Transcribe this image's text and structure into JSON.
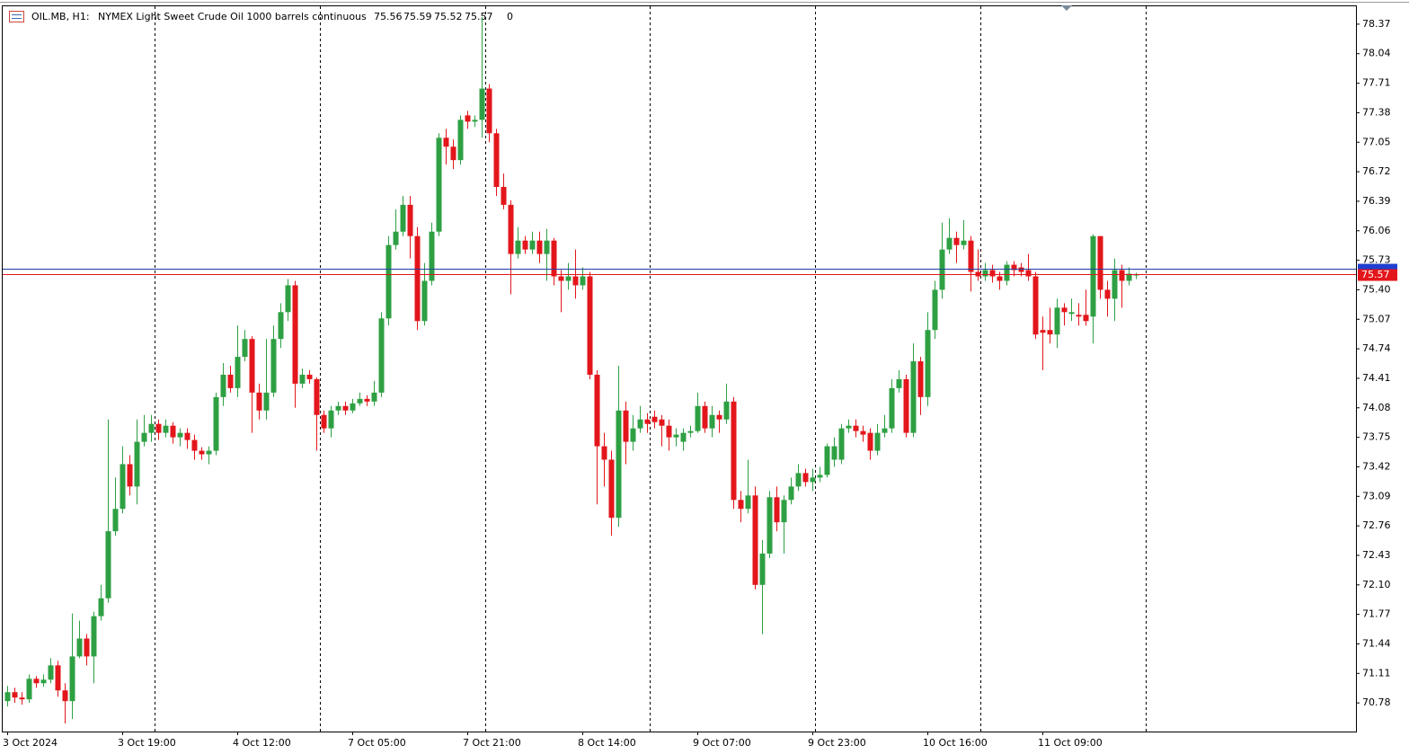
{
  "chart_data": {
    "type": "candlestick",
    "symbol": "OIL.MB, H1:",
    "title": "NYMEX Light Sweet Crude Oil 1000 barrels continuous",
    "volume": 0,
    "bid": 75.57,
    "ask": 75.63,
    "up_color": "#2ea043",
    "down_color": "#e3161b",
    "ylim": [
      70.46,
      78.57
    ],
    "yticks": [
      78.37,
      78.04,
      77.71,
      77.38,
      77.05,
      76.72,
      76.39,
      76.06,
      75.73,
      {
        "value": 75.4,
        "label": "75.40"
      },
      75.07,
      74.74,
      74.41,
      74.08,
      73.75,
      73.42,
      73.09,
      72.76,
      72.43,
      {
        "value": 72.1,
        "label": "72.10"
      },
      71.77,
      71.44,
      71.11,
      70.78
    ],
    "categories": [
      "3 Oct 2024",
      null,
      null,
      null,
      null,
      null,
      null,
      null,
      null,
      null,
      null,
      null,
      null,
      null,
      null,
      null,
      "3 Oct 19:00",
      null,
      null,
      null,
      null,
      null,
      null,
      null,
      null,
      null,
      null,
      null,
      null,
      null,
      null,
      null,
      "4 Oct 12:00",
      null,
      null,
      null,
      null,
      null,
      null,
      null,
      null,
      null,
      null,
      null,
      null,
      null,
      null,
      null,
      "7 Oct 05:00",
      null,
      null,
      null,
      null,
      null,
      null,
      null,
      null,
      null,
      null,
      null,
      null,
      null,
      null,
      null,
      "7 Oct 21:00",
      null,
      null,
      null,
      null,
      null,
      null,
      null,
      null,
      null,
      null,
      null,
      null,
      null,
      null,
      null,
      "8 Oct 14:00",
      null,
      null,
      null,
      null,
      null,
      null,
      null,
      null,
      null,
      null,
      null,
      null,
      null,
      null,
      null,
      "9 Oct 07:00",
      null,
      null,
      null,
      null,
      null,
      null,
      null,
      null,
      null,
      null,
      null,
      null,
      null,
      null,
      null,
      "9 Oct 23:00",
      null,
      null,
      null,
      null,
      null,
      null,
      null,
      null,
      null,
      null,
      null,
      null,
      null,
      null,
      null,
      "10 Oct 16:00",
      null,
      null,
      null,
      null,
      null,
      null,
      null,
      null,
      null,
      null,
      null,
      null,
      null,
      null,
      null,
      "11 Oct 09:00",
      null,
      null,
      null,
      null,
      null,
      null,
      null,
      null,
      null,
      null,
      null,
      null,
      null
    ],
    "open": [
      70.8,
      70.9,
      70.84,
      70.82,
      71.05,
      71.0,
      71.04,
      71.2,
      70.92,
      70.8,
      71.3,
      71.5,
      71.3,
      71.75,
      71.95,
      72.7,
      72.95,
      73.45,
      73.2,
      73.7,
      73.8,
      73.9,
      73.8,
      73.88,
      73.75,
      73.8,
      73.72,
      73.6,
      73.56,
      73.6,
      74.2,
      74.45,
      74.3,
      74.65,
      74.85,
      74.25,
      74.05,
      74.25,
      74.85,
      75.15,
      75.45,
      74.35,
      74.45,
      74.4,
      74.0,
      73.85,
      74.05,
      74.1,
      74.05,
      74.13,
      74.18,
      74.15,
      74.25,
      75.08,
      75.9,
      76.05,
      76.35,
      76.0,
      75.05,
      75.5,
      76.05,
      77.1,
      77.0,
      76.85,
      77.35,
      77.28,
      77.3,
      77.65,
      77.15,
      76.55,
      76.35,
      75.8,
      75.95,
      75.85,
      75.95,
      75.8,
      75.95,
      75.55,
      75.5,
      75.55,
      75.45,
      75.55,
      74.45,
      73.65,
      73.5,
      72.85,
      74.05,
      73.7,
      73.85,
      73.95,
      73.98,
      73.95,
      73.88,
      73.75,
      73.7,
      73.8,
      73.82,
      74.1,
      73.85,
      74.0,
      73.95,
      74.15,
      73.05,
      72.95,
      73.1,
      72.1,
      72.45,
      73.08,
      72.8,
      73.05,
      73.2,
      73.35,
      73.25,
      73.3,
      73.33,
      73.5,
      73.5,
      73.85,
      73.88,
      73.82,
      73.8,
      73.6,
      73.8,
      73.85,
      74.3,
      74.4,
      73.8,
      74.6,
      74.2,
      74.95,
      75.4,
      75.85,
      75.98,
      75.9,
      75.95,
      75.6,
      75.55,
      75.62,
      75.55,
      75.5,
      75.68,
      75.65,
      75.62,
      75.55,
      74.95,
      74.95,
      74.9,
      75.2,
      75.13,
      75.12,
      75.12,
      75.1,
      76.0,
      75.4,
      75.3,
      75.62,
      75.5,
      75.56
    ],
    "high": [
      70.97,
      70.95,
      70.9,
      71.1,
      71.08,
      71.1,
      71.28,
      71.25,
      71.0,
      71.78,
      71.7,
      71.55,
      71.8,
      72.1,
      73.95,
      73.3,
      73.65,
      73.55,
      73.95,
      74.0,
      74.0,
      73.95,
      73.95,
      73.92,
      73.85,
      73.85,
      73.78,
      73.64,
      73.65,
      74.25,
      74.58,
      74.55,
      75.0,
      74.95,
      74.88,
      74.35,
      74.85,
      75.0,
      75.25,
      75.52,
      75.5,
      74.52,
      74.5,
      74.42,
      74.05,
      74.1,
      74.15,
      74.15,
      74.18,
      74.25,
      74.22,
      74.38,
      75.15,
      76.0,
      76.3,
      76.45,
      76.45,
      76.1,
      75.7,
      76.15,
      77.15,
      77.2,
      77.08,
      77.35,
      77.4,
      77.35,
      78.45,
      77.7,
      77.2,
      76.7,
      76.4,
      76.1,
      76.0,
      76.05,
      76.05,
      76.08,
      75.98,
      75.62,
      75.7,
      75.85,
      75.65,
      75.6,
      74.5,
      73.8,
      73.6,
      74.55,
      74.15,
      74.0,
      74.1,
      74.02,
      74.05,
      74.0,
      73.95,
      73.85,
      73.85,
      73.88,
      74.25,
      74.15,
      74.1,
      74.05,
      74.35,
      74.2,
      73.15,
      73.5,
      73.2,
      72.6,
      73.15,
      73.2,
      73.1,
      73.3,
      73.45,
      73.4,
      73.4,
      73.42,
      73.68,
      73.75,
      73.9,
      73.95,
      73.95,
      73.88,
      73.85,
      73.9,
      74.0,
      74.4,
      74.5,
      74.45,
      74.8,
      74.65,
      75.15,
      75.5,
      76.15,
      76.2,
      76.05,
      76.18,
      76.0,
      75.85,
      75.7,
      75.68,
      75.6,
      75.72,
      75.72,
      75.7,
      75.8,
      75.6,
      75.1,
      75.2,
      75.3,
      75.25,
      75.3,
      75.25,
      75.4,
      76.02,
      76.0,
      75.5,
      75.75,
      75.68,
      75.65,
      75.59
    ],
    "low": [
      70.74,
      70.78,
      70.76,
      70.78,
      70.95,
      70.96,
      71.0,
      70.85,
      70.55,
      70.6,
      71.28,
      71.2,
      71.0,
      71.7,
      71.9,
      72.65,
      72.9,
      73.1,
      73.0,
      73.65,
      73.7,
      73.72,
      73.75,
      73.68,
      73.65,
      73.62,
      73.5,
      73.5,
      73.45,
      73.55,
      74.1,
      74.25,
      74.2,
      74.6,
      73.8,
      73.95,
      73.95,
      74.2,
      74.75,
      75.05,
      74.08,
      74.3,
      74.35,
      73.6,
      73.8,
      73.75,
      74.0,
      74.0,
      74.02,
      74.1,
      74.1,
      74.1,
      74.2,
      75.0,
      75.85,
      76.0,
      75.75,
      74.95,
      75.0,
      75.45,
      76.0,
      76.8,
      76.75,
      76.8,
      77.2,
      77.22,
      77.1,
      77.05,
      76.45,
      76.3,
      75.35,
      75.75,
      75.8,
      75.8,
      75.7,
      75.5,
      75.45,
      75.15,
      75.4,
      75.3,
      75.4,
      74.4,
      73.0,
      73.2,
      72.65,
      72.75,
      73.45,
      73.6,
      73.8,
      73.8,
      73.85,
      73.65,
      73.6,
      73.65,
      73.6,
      73.75,
      73.8,
      73.8,
      73.75,
      73.8,
      73.9,
      72.95,
      72.8,
      72.9,
      72.05,
      71.55,
      72.4,
      72.7,
      72.45,
      73.0,
      73.15,
      73.2,
      73.15,
      73.25,
      73.3,
      73.42,
      73.45,
      73.8,
      73.75,
      73.7,
      73.5,
      73.55,
      73.75,
      73.8,
      74.25,
      73.75,
      73.75,
      74.0,
      74.1,
      74.85,
      75.3,
      75.8,
      75.7,
      75.85,
      75.38,
      75.5,
      75.5,
      75.48,
      75.4,
      75.45,
      75.55,
      75.55,
      75.5,
      74.85,
      74.5,
      74.8,
      74.75,
      75.0,
      75.05,
      75.0,
      75.0,
      74.8,
      75.3,
      75.1,
      75.05,
      75.2,
      75.45,
      75.52
    ],
    "close": [
      70.9,
      70.84,
      70.82,
      71.05,
      71.0,
      71.04,
      71.2,
      70.92,
      70.8,
      71.3,
      71.5,
      71.3,
      71.75,
      71.95,
      72.7,
      72.95,
      73.45,
      73.2,
      73.7,
      73.8,
      73.9,
      73.8,
      73.88,
      73.75,
      73.8,
      73.72,
      73.6,
      73.56,
      73.6,
      74.2,
      74.45,
      74.3,
      74.65,
      74.85,
      74.25,
      74.05,
      74.25,
      74.85,
      75.15,
      75.45,
      74.35,
      74.45,
      74.4,
      74.0,
      73.85,
      74.05,
      74.1,
      74.05,
      74.13,
      74.18,
      74.15,
      74.25,
      75.08,
      75.9,
      76.05,
      76.35,
      76.0,
      75.05,
      75.5,
      76.05,
      77.1,
      77.0,
      76.85,
      77.3,
      77.28,
      77.3,
      77.65,
      77.15,
      76.55,
      76.35,
      75.8,
      75.95,
      75.85,
      75.95,
      75.8,
      75.95,
      75.55,
      75.5,
      75.55,
      75.45,
      75.55,
      74.45,
      73.65,
      73.5,
      72.85,
      74.05,
      73.7,
      73.85,
      73.95,
      73.9,
      73.92,
      73.88,
      73.75,
      73.78,
      73.8,
      73.82,
      74.1,
      73.85,
      74.0,
      73.95,
      74.15,
      73.05,
      72.95,
      73.1,
      72.1,
      72.45,
      73.08,
      72.8,
      73.05,
      73.2,
      73.35,
      73.25,
      73.3,
      73.33,
      73.65,
      73.65,
      73.85,
      73.88,
      73.82,
      73.78,
      73.6,
      73.8,
      73.85,
      74.3,
      74.4,
      73.8,
      74.6,
      74.2,
      74.95,
      75.4,
      75.85,
      75.98,
      75.9,
      75.95,
      75.6,
      75.55,
      75.62,
      75.55,
      75.5,
      75.68,
      75.62,
      75.6,
      75.55,
      74.9,
      74.92,
      74.9,
      75.2,
      75.15,
      75.15,
      75.1,
      75.05,
      76.0,
      75.4,
      75.3,
      75.62,
      75.5,
      75.58,
      75.57
    ]
  }
}
